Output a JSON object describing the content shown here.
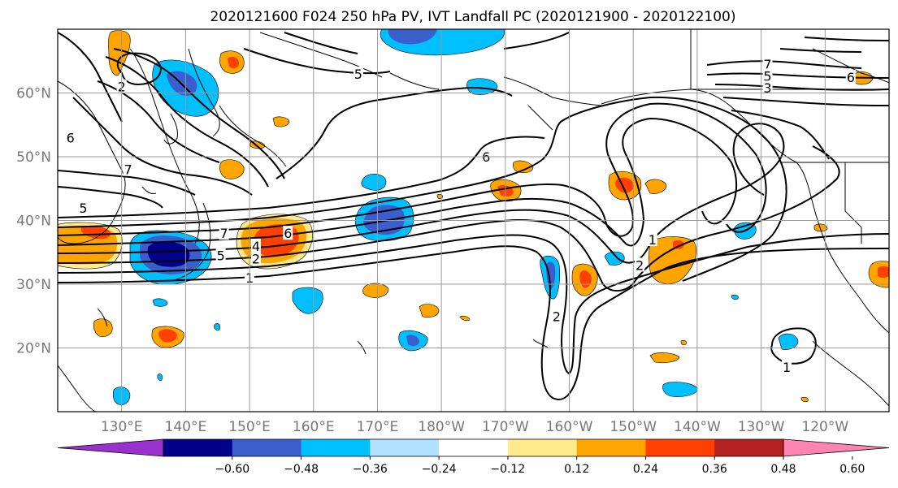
{
  "title": "2020121600 F024 250 hPa PV, IVT Landfall PC (2020121900 - 2020122100)",
  "map": {
    "lon_range": [
      120,
      250
    ],
    "lat_range": [
      10,
      70
    ],
    "lat_ticks": [
      {
        "lat": 60,
        "label": "60°N"
      },
      {
        "lat": 50,
        "label": "50°N"
      },
      {
        "lat": 40,
        "label": "40°N"
      },
      {
        "lat": 30,
        "label": "30°N"
      },
      {
        "lat": 20,
        "label": "20°N"
      }
    ],
    "lon_ticks": [
      {
        "lon": 130,
        "label": "130°E"
      },
      {
        "lon": 140,
        "label": "140°E"
      },
      {
        "lon": 150,
        "label": "150°E"
      },
      {
        "lon": 160,
        "label": "160°E"
      },
      {
        "lon": 170,
        "label": "170°E"
      },
      {
        "lon": 180,
        "label": "180°W"
      },
      {
        "lon": 190,
        "label": "170°W"
      },
      {
        "lon": 200,
        "label": "160°W"
      },
      {
        "lon": 210,
        "label": "150°W"
      },
      {
        "lon": 220,
        "label": "140°W"
      },
      {
        "lon": 230,
        "label": "130°W"
      },
      {
        "lon": 240,
        "label": "120°W"
      }
    ],
    "grid": true
  },
  "colorbar": {
    "extend": "both",
    "colors": [
      "#9932cc",
      "#00008b",
      "#3a5fcd",
      "#00bfff",
      "#b0e2ff",
      "#ffffff",
      "#ffeb8c",
      "#ffa500",
      "#ff4000",
      "#b22222",
      "#ff85b0"
    ],
    "tick_labels": [
      "−0.60",
      "−0.48",
      "−0.36",
      "−0.24",
      "−0.12",
      "0.12",
      "0.24",
      "0.36",
      "0.48",
      "0.60"
    ]
  },
  "contour_labels": [
    {
      "text": "5",
      "lon": 145.5,
      "lat": 34.5
    },
    {
      "text": "4",
      "lon": 151,
      "lat": 36
    },
    {
      "text": "6",
      "lon": 156,
      "lat": 38
    },
    {
      "text": "2",
      "lon": 151,
      "lat": 34
    },
    {
      "text": "7",
      "lon": 146,
      "lat": 38
    },
    {
      "text": "1",
      "lon": 150,
      "lat": 31
    },
    {
      "text": "6",
      "lon": 187,
      "lat": 50
    },
    {
      "text": "1",
      "lon": 213,
      "lat": 37
    },
    {
      "text": "2",
      "lon": 211,
      "lat": 33
    },
    {
      "text": "2",
      "lon": 198,
      "lat": 25
    },
    {
      "text": "5",
      "lon": 167,
      "lat": 63
    },
    {
      "text": "7",
      "lon": 231,
      "lat": 64.5
    },
    {
      "text": "5",
      "lon": 231,
      "lat": 62.7
    },
    {
      "text": "3",
      "lon": 231,
      "lat": 60.8
    },
    {
      "text": "6",
      "lon": 244,
      "lat": 62.5
    },
    {
      "text": "1",
      "lon": 234,
      "lat": 17
    },
    {
      "text": "2",
      "lon": 130,
      "lat": 61
    },
    {
      "text": "6",
      "lon": 122,
      "lat": 53
    },
    {
      "text": "7",
      "lon": 131,
      "lat": 48
    },
    {
      "text": "5",
      "lon": 124,
      "lat": 42
    }
  ]
}
